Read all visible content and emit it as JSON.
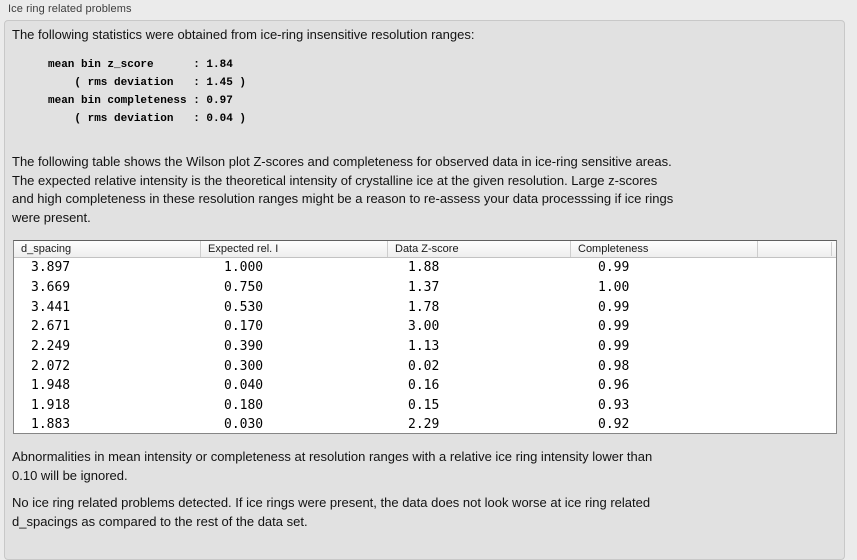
{
  "section": {
    "title": "Ice ring related problems",
    "intro_text": "The following statistics were obtained from ice-ring insensitive resolution ranges:",
    "stats_block": "mean bin z_score      : 1.84\n    ( rms deviation   : 1.45 )\nmean bin completeness : 0.97\n    ( rms deviation   : 0.04 )",
    "stats": {
      "mean_bin_z_score": "1.84",
      "z_score_rms_deviation": "1.45",
      "mean_bin_completeness": "0.97",
      "completeness_rms_deviation": "0.04"
    },
    "table_description": "The following table shows the Wilson plot Z-scores and completeness for observed data in ice-ring sensitive areas.\nThe expected relative intensity is the theoretical intensity of crystalline ice at the given resolution. Large z-scores\nand high completeness in these resolution ranges might be a reason to re-assess your data processsing if ice rings\nwere present.",
    "table": {
      "headers": [
        "d_spacing",
        "Expected rel. I",
        "Data Z-score",
        "Completeness"
      ],
      "rows": [
        [
          "3.897",
          "1.000",
          "1.88",
          "0.99"
        ],
        [
          "3.669",
          "0.750",
          "1.37",
          "1.00"
        ],
        [
          "3.441",
          "0.530",
          "1.78",
          "0.99"
        ],
        [
          "2.671",
          "0.170",
          "3.00",
          "0.99"
        ],
        [
          "2.249",
          "0.390",
          "1.13",
          "0.99"
        ],
        [
          "2.072",
          "0.300",
          "0.02",
          "0.98"
        ],
        [
          "1.948",
          "0.040",
          "0.16",
          "0.96"
        ],
        [
          "1.918",
          "0.180",
          "0.15",
          "0.93"
        ],
        [
          "1.883",
          "0.030",
          "2.29",
          "0.92"
        ]
      ]
    },
    "ignore_note": "Abnormalities in mean intensity or completeness at resolution ranges with a relative ice ring intensity lower than\n0.10 will be ignored.",
    "conclusion": "No ice ring related problems detected. If ice rings were present, the data does not look worse at ice ring related\nd_spacings as compared to the rest of the data set."
  }
}
